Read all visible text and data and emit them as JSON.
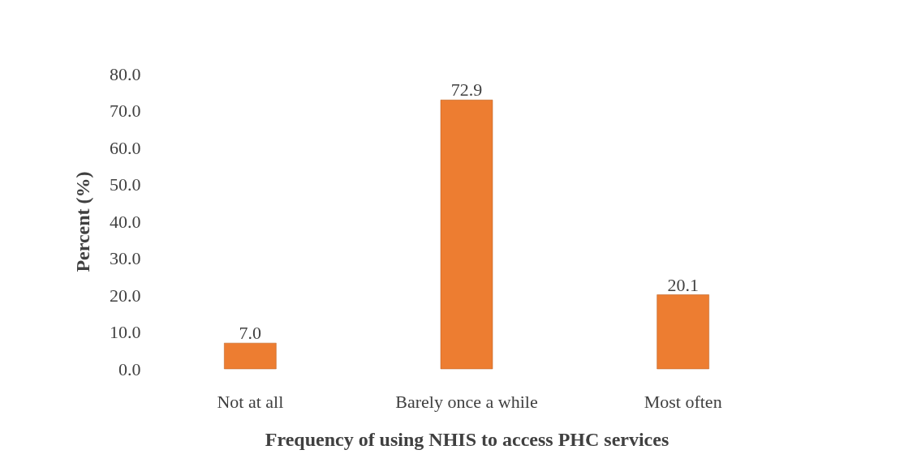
{
  "chart_data": {
    "type": "bar",
    "categories": [
      "Not at all",
      "Barely once a while",
      "Most often"
    ],
    "values": [
      7.0,
      72.9,
      20.1
    ],
    "value_labels": [
      "7.0",
      "72.9",
      "20.1"
    ],
    "color": "#ed7d31",
    "xlabel": "Frequency of using NHIS to access PHC services",
    "ylabel": "Percent (%)",
    "ylim": [
      0,
      80
    ],
    "yticks": [
      {
        "value": 0,
        "label": "0.0"
      },
      {
        "value": 10,
        "label": "10.0"
      },
      {
        "value": 20,
        "label": "20.0"
      },
      {
        "value": 30,
        "label": "30.0"
      },
      {
        "value": 40,
        "label": "40.0"
      },
      {
        "value": 50,
        "label": "50.0"
      },
      {
        "value": 60,
        "label": "60.0"
      },
      {
        "value": 70,
        "label": "70.0"
      },
      {
        "value": 80,
        "label": "80.0"
      }
    ],
    "grid": false
  }
}
